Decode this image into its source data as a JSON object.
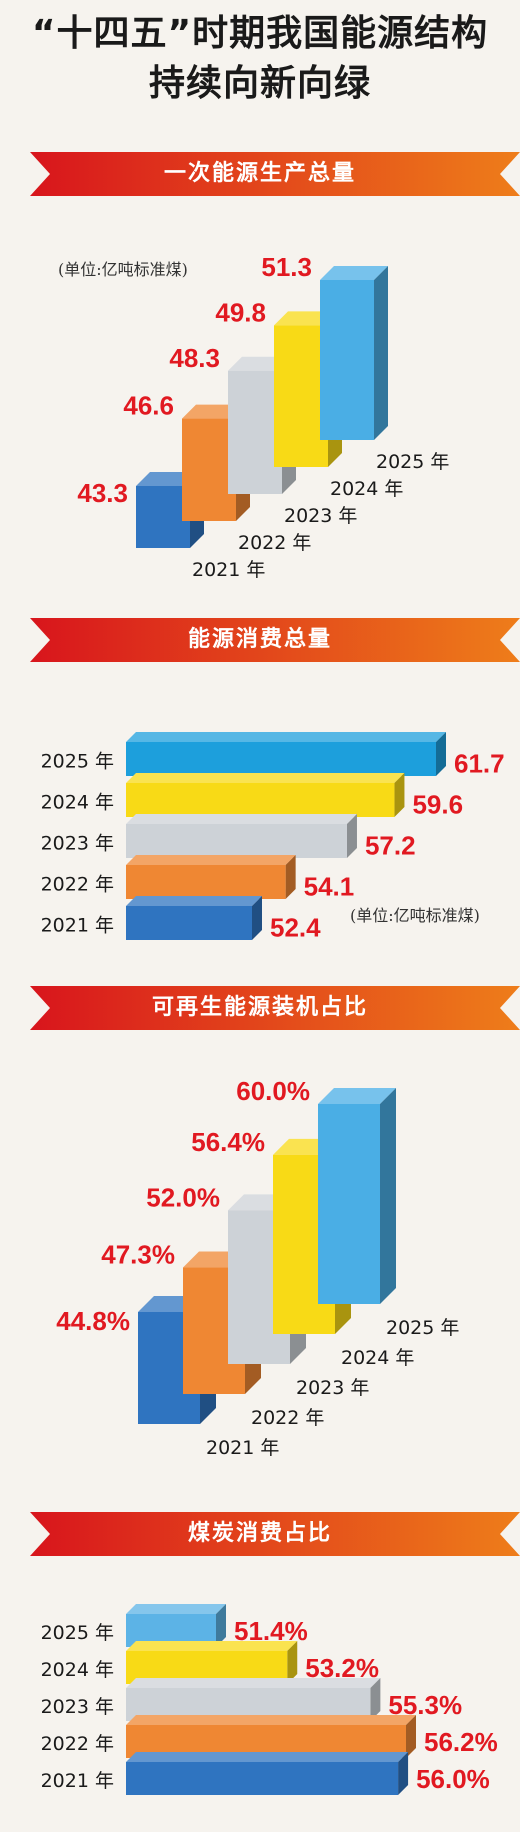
{
  "page": {
    "title_line1": "“十四五”时期我国能源结构",
    "title_line2": "持续向新向绿"
  },
  "colors": {
    "banner_left": "#d8151c",
    "banner_right": "#ee7d1a",
    "value_text": "#e11921",
    "bar_2021": "#2f74c0",
    "bar_2022": "#ef8733",
    "bar_2023": "#cdd2d7",
    "bar_2024": "#f8da16",
    "bar_2025_production": "#4aaee5",
    "bar_2025_consumption": "#1d9fdc",
    "bar_2025_coal": "#5cb3e6"
  },
  "chart_data": [
    {
      "id": "production",
      "type": "bar",
      "title": "一次能源生产总量",
      "unit": "(单位:亿吨标准煤)",
      "orientation": "vertical-3d",
      "categories": [
        "2021 年",
        "2022 年",
        "2023 年",
        "2024 年",
        "2025 年"
      ],
      "values": [
        43.3,
        46.6,
        48.3,
        49.8,
        51.3
      ],
      "labels": [
        "43.3",
        "46.6",
        "48.3",
        "49.8",
        "51.3"
      ]
    },
    {
      "id": "consumption",
      "type": "bar",
      "title": "能源消费总量",
      "unit": "(单位:亿吨标准煤)",
      "orientation": "horizontal",
      "categories": [
        "2025 年",
        "2024 年",
        "2023 年",
        "2022 年",
        "2021 年"
      ],
      "values": [
        61.7,
        59.6,
        57.2,
        54.1,
        52.4
      ],
      "labels": [
        "61.7",
        "59.6",
        "57.2",
        "54.1",
        "52.4"
      ]
    },
    {
      "id": "renewable",
      "type": "bar",
      "title": "可再生能源装机占比",
      "orientation": "vertical-3d",
      "categories": [
        "2021 年",
        "2022 年",
        "2023 年",
        "2024 年",
        "2025 年"
      ],
      "values": [
        44.8,
        47.3,
        52.0,
        56.4,
        60.0
      ],
      "labels": [
        "44.8%",
        "47.3%",
        "52.0%",
        "56.4%",
        "60.0%"
      ]
    },
    {
      "id": "coal",
      "type": "bar",
      "title": "煤炭消费占比",
      "orientation": "horizontal",
      "categories": [
        "2025 年",
        "2024 年",
        "2023 年",
        "2022 年",
        "2021 年"
      ],
      "values": [
        51.4,
        53.2,
        55.3,
        56.2,
        56.0
      ],
      "labels": [
        "51.4%",
        "53.2%",
        "55.3%",
        "56.2%",
        "56.0%"
      ]
    }
  ]
}
